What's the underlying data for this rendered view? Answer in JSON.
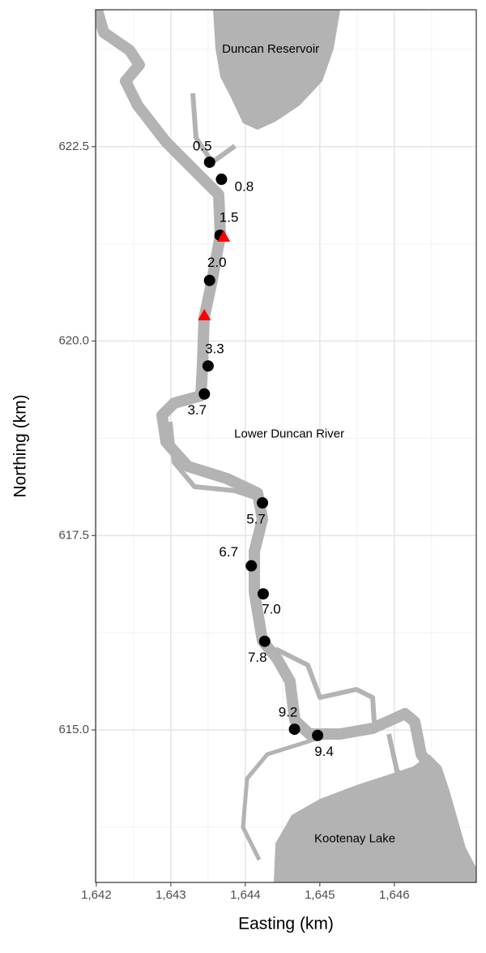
{
  "chart_data": {
    "type": "scatter",
    "x_label": "Easting (km)",
    "y_label": "Northing (km)",
    "xlim": [
      1641.99,
      1647.1
    ],
    "ylim": [
      613.04,
      624.26
    ],
    "xticks": [
      {
        "value": 1642,
        "label": "1,642"
      },
      {
        "value": 1643,
        "label": "1,643"
      },
      {
        "value": 1644,
        "label": "1,644"
      },
      {
        "value": 1645,
        "label": "1,645"
      },
      {
        "value": 1646,
        "label": "1,646"
      }
    ],
    "yticks": [
      {
        "value": 615,
        "label": "615.0"
      },
      617.5,
      {
        "value": 620,
        "label": "620.0"
      },
      622.5
    ],
    "grid": true,
    "annotations": [
      {
        "text": "Duncan Reservoir",
        "x": 1644.34,
        "y": 623.75
      },
      {
        "text": "Lower Duncan River",
        "x": 1644.59,
        "y": 618.8
      },
      {
        "text": "Kootenay Lake",
        "x": 1645.47,
        "y": 613.6
      }
    ],
    "series": [
      {
        "marker": "circle",
        "color": "#000000",
        "x": [
          1643.52,
          1643.68,
          1643.66,
          1643.52,
          1643.5,
          1643.45,
          1644.23,
          1644.08,
          1644.24,
          1644.26,
          1644.66,
          1644.97
        ],
        "values": [
          622.3,
          622.08,
          621.36,
          620.78,
          619.68,
          619.32,
          617.92,
          617.11,
          616.75,
          616.14,
          615.01,
          614.93
        ],
        "labels": [
          "0.5",
          "0.8",
          "1.5",
          "2.0",
          "3.3",
          "3.7",
          "5.7",
          "6.7",
          "7.0",
          "7.8",
          "9.2",
          "9.4"
        ]
      },
      {
        "marker": "triangle",
        "color": "#ff0000",
        "x": [
          1643.71,
          1643.45
        ],
        "values": [
          621.34,
          620.33
        ]
      }
    ]
  }
}
